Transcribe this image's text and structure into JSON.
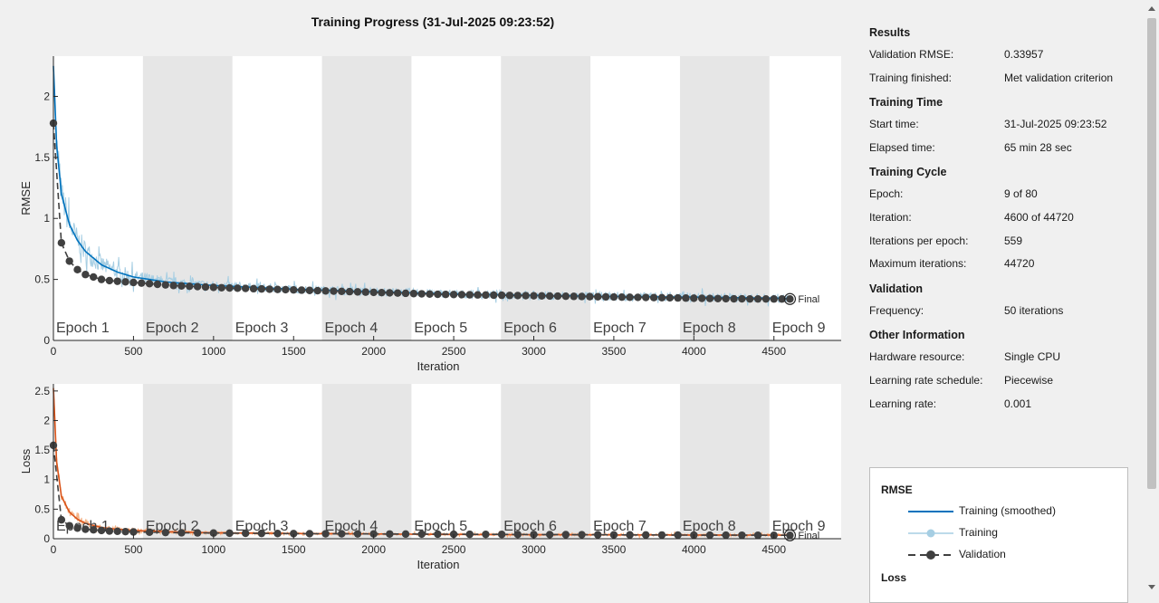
{
  "title": "Training Progress (31-Jul-2025 09:23:52)",
  "chart_data": [
    {
      "type": "line",
      "ylabel": "RMSE",
      "xlabel": "Iteration",
      "xlim": [
        0,
        4920
      ],
      "ylim": [
        0,
        2.33
      ],
      "x_ticks": [
        0,
        500,
        1000,
        1500,
        2000,
        2500,
        3000,
        3500,
        4000,
        4500
      ],
      "y_ticks": [
        0,
        0.5,
        1,
        1.5,
        2
      ],
      "y_tick_labels": [
        "0",
        "0.5",
        "1",
        "1.5",
        "2"
      ],
      "epochs": [
        "Epoch 1",
        "Epoch 2",
        "Epoch 3",
        "Epoch 4",
        "Epoch 5",
        "Epoch 6",
        "Epoch 7",
        "Epoch 8",
        "Epoch 9"
      ],
      "iterations_per_epoch": 559,
      "final_iteration": 4600,
      "final_label": "Final",
      "series": [
        {
          "name": "Training (smoothed)",
          "color": "#0072bd",
          "points": [
            [
              0,
              2.25
            ],
            [
              20,
              1.6
            ],
            [
              50,
              1.2
            ],
            [
              100,
              0.95
            ],
            [
              150,
              0.82
            ],
            [
              200,
              0.73
            ],
            [
              300,
              0.62
            ],
            [
              400,
              0.56
            ],
            [
              500,
              0.52
            ],
            [
              700,
              0.48
            ],
            [
              1000,
              0.45
            ],
            [
              1500,
              0.42
            ],
            [
              2000,
              0.4
            ],
            [
              2500,
              0.38
            ],
            [
              3000,
              0.37
            ],
            [
              3500,
              0.36
            ],
            [
              4000,
              0.355
            ],
            [
              4600,
              0.345
            ]
          ]
        },
        {
          "name": "Training",
          "color": "#a6cee3"
        },
        {
          "name": "Validation",
          "color": "#404040",
          "points": [
            [
              0,
              1.78
            ],
            [
              50,
              0.8
            ],
            [
              100,
              0.65
            ],
            [
              150,
              0.58
            ],
            [
              200,
              0.54
            ],
            [
              250,
              0.52
            ],
            [
              300,
              0.5
            ],
            [
              350,
              0.49
            ],
            [
              400,
              0.485
            ],
            [
              450,
              0.48
            ],
            [
              500,
              0.475
            ],
            [
              550,
              0.47
            ],
            [
              600,
              0.465
            ],
            [
              650,
              0.46
            ],
            [
              700,
              0.455
            ],
            [
              750,
              0.45
            ],
            [
              800,
              0.447
            ],
            [
              850,
              0.444
            ],
            [
              900,
              0.441
            ],
            [
              950,
              0.438
            ],
            [
              1000,
              0.435
            ],
            [
              1050,
              0.432
            ],
            [
              1100,
              0.43
            ],
            [
              1150,
              0.428
            ],
            [
              1200,
              0.426
            ],
            [
              1250,
              0.424
            ],
            [
              1300,
              0.422
            ],
            [
              1350,
              0.42
            ],
            [
              1400,
              0.418
            ],
            [
              1450,
              0.416
            ],
            [
              1500,
              0.414
            ],
            [
              1550,
              0.412
            ],
            [
              1600,
              0.41
            ],
            [
              1650,
              0.408
            ],
            [
              1700,
              0.406
            ],
            [
              1750,
              0.404
            ],
            [
              1800,
              0.402
            ],
            [
              1850,
              0.4
            ],
            [
              1900,
              0.398
            ],
            [
              1950,
              0.396
            ],
            [
              2000,
              0.394
            ],
            [
              2050,
              0.392
            ],
            [
              2100,
              0.39
            ],
            [
              2150,
              0.388
            ],
            [
              2200,
              0.386
            ],
            [
              2250,
              0.384
            ],
            [
              2300,
              0.382
            ],
            [
              2350,
              0.38
            ],
            [
              2400,
              0.378
            ],
            [
              2450,
              0.377
            ],
            [
              2500,
              0.376
            ],
            [
              2550,
              0.375
            ],
            [
              2600,
              0.374
            ],
            [
              2650,
              0.373
            ],
            [
              2700,
              0.372
            ],
            [
              2750,
              0.371
            ],
            [
              2800,
              0.37
            ],
            [
              2850,
              0.369
            ],
            [
              2900,
              0.368
            ],
            [
              2950,
              0.367
            ],
            [
              3000,
              0.366
            ],
            [
              3050,
              0.365
            ],
            [
              3100,
              0.364
            ],
            [
              3150,
              0.363
            ],
            [
              3200,
              0.362
            ],
            [
              3250,
              0.361
            ],
            [
              3300,
              0.36
            ],
            [
              3350,
              0.359
            ],
            [
              3400,
              0.358
            ],
            [
              3450,
              0.357
            ],
            [
              3500,
              0.356
            ],
            [
              3550,
              0.355
            ],
            [
              3600,
              0.354
            ],
            [
              3650,
              0.353
            ],
            [
              3700,
              0.352
            ],
            [
              3750,
              0.351
            ],
            [
              3800,
              0.35
            ],
            [
              3850,
              0.349
            ],
            [
              3900,
              0.348
            ],
            [
              3950,
              0.347
            ],
            [
              4000,
              0.346
            ],
            [
              4050,
              0.345
            ],
            [
              4100,
              0.344
            ],
            [
              4150,
              0.343
            ],
            [
              4200,
              0.342
            ],
            [
              4250,
              0.341
            ],
            [
              4300,
              0.341
            ],
            [
              4350,
              0.34
            ],
            [
              4400,
              0.34
            ],
            [
              4450,
              0.34
            ],
            [
              4500,
              0.3396
            ],
            [
              4550,
              0.3396
            ],
            [
              4600,
              0.33957
            ]
          ]
        }
      ]
    },
    {
      "type": "line",
      "ylabel": "Loss",
      "xlabel": "Iteration",
      "xlim": [
        0,
        4920
      ],
      "ylim": [
        0,
        2.62
      ],
      "x_ticks": [
        0,
        500,
        1000,
        1500,
        2000,
        2500,
        3000,
        3500,
        4000,
        4500
      ],
      "y_ticks": [
        0,
        0.5,
        1,
        1.5,
        2,
        2.5
      ],
      "y_tick_labels": [
        "0",
        "0.5",
        "1",
        "1.5",
        "2",
        "2.5"
      ],
      "epochs": [
        "Epoch 1",
        "Epoch 2",
        "Epoch 3",
        "Epoch 4",
        "Epoch 5",
        "Epoch 6",
        "Epoch 7",
        "Epoch 8",
        "Epoch 9"
      ],
      "iterations_per_epoch": 559,
      "final_iteration": 4600,
      "final_label": "Final",
      "series": [
        {
          "name": "Training (smoothed)",
          "color": "#d95319",
          "points": [
            [
              0,
              2.55
            ],
            [
              20,
              1.3
            ],
            [
              50,
              0.72
            ],
            [
              100,
              0.45
            ],
            [
              150,
              0.33
            ],
            [
              200,
              0.26
            ],
            [
              300,
              0.19
            ],
            [
              400,
              0.16
            ],
            [
              500,
              0.14
            ],
            [
              700,
              0.12
            ],
            [
              1000,
              0.1
            ],
            [
              1500,
              0.088
            ],
            [
              2000,
              0.08
            ],
            [
              2500,
              0.072
            ],
            [
              3000,
              0.068
            ],
            [
              3500,
              0.065
            ],
            [
              4000,
              0.063
            ],
            [
              4600,
              0.06
            ]
          ]
        },
        {
          "name": "Training",
          "color": "#f4b183"
        },
        {
          "name": "Validation",
          "color": "#404040",
          "points": [
            [
              0,
              1.58
            ],
            [
              50,
              0.32
            ],
            [
              100,
              0.22
            ],
            [
              150,
              0.18
            ],
            [
              200,
              0.16
            ],
            [
              250,
              0.15
            ],
            [
              300,
              0.14
            ],
            [
              350,
              0.13
            ],
            [
              400,
              0.125
            ],
            [
              450,
              0.12
            ],
            [
              500,
              0.115
            ],
            [
              600,
              0.11
            ],
            [
              700,
              0.105
            ],
            [
              800,
              0.1
            ],
            [
              900,
              0.098
            ],
            [
              1000,
              0.096
            ],
            [
              1100,
              0.094
            ],
            [
              1200,
              0.092
            ],
            [
              1300,
              0.09
            ],
            [
              1400,
              0.088
            ],
            [
              1500,
              0.086
            ],
            [
              1600,
              0.085
            ],
            [
              1700,
              0.084
            ],
            [
              1800,
              0.083
            ],
            [
              1900,
              0.082
            ],
            [
              2000,
              0.081
            ],
            [
              2100,
              0.08
            ],
            [
              2200,
              0.079
            ],
            [
              2300,
              0.078
            ],
            [
              2400,
              0.077
            ],
            [
              2500,
              0.076
            ],
            [
              2600,
              0.075
            ],
            [
              2700,
              0.074
            ],
            [
              2800,
              0.073
            ],
            [
              2900,
              0.072
            ],
            [
              3000,
              0.071
            ],
            [
              3100,
              0.07
            ],
            [
              3200,
              0.069
            ],
            [
              3300,
              0.068
            ],
            [
              3400,
              0.067
            ],
            [
              3500,
              0.066
            ],
            [
              3600,
              0.065
            ],
            [
              3700,
              0.064
            ],
            [
              3800,
              0.063
            ],
            [
              3900,
              0.062
            ],
            [
              4000,
              0.061
            ],
            [
              4100,
              0.06
            ],
            [
              4200,
              0.06
            ],
            [
              4300,
              0.059
            ],
            [
              4400,
              0.059
            ],
            [
              4500,
              0.058
            ],
            [
              4600,
              0.058
            ]
          ]
        }
      ]
    }
  ],
  "info": {
    "sections": [
      {
        "title": "Results",
        "rows": [
          {
            "label": "Validation RMSE:",
            "value": "0.33957"
          },
          {
            "label": "Training finished:",
            "value": "Met validation criterion"
          }
        ]
      },
      {
        "title": "Training Time",
        "rows": [
          {
            "label": "Start time:",
            "value": "31-Jul-2025 09:23:52"
          },
          {
            "label": "Elapsed time:",
            "value": "65 min 28 sec"
          }
        ]
      },
      {
        "title": "Training Cycle",
        "rows": [
          {
            "label": "Epoch:",
            "value": "9 of 80"
          },
          {
            "label": "Iteration:",
            "value": "4600 of 44720"
          },
          {
            "label": "Iterations per epoch:",
            "value": "559"
          },
          {
            "label": "Maximum iterations:",
            "value": "44720"
          }
        ]
      },
      {
        "title": "Validation",
        "rows": [
          {
            "label": "Frequency:",
            "value": "50 iterations"
          }
        ]
      },
      {
        "title": "Other Information",
        "rows": [
          {
            "label": "Hardware resource:",
            "value": "Single CPU"
          },
          {
            "label": "Learning rate schedule:",
            "value": "Piecewise"
          },
          {
            "label": "Learning rate:",
            "value": "0.001"
          }
        ]
      }
    ]
  },
  "legend": {
    "rmse_title": "RMSE",
    "loss_title": "Loss",
    "items": [
      {
        "label": "Training (smoothed)",
        "color": "#0072bd",
        "style": "solid"
      },
      {
        "label": "Training",
        "color": "#a6cee3",
        "style": "marker"
      },
      {
        "label": "Validation",
        "color": "#404040",
        "style": "dashed-marker"
      }
    ]
  },
  "colors": {
    "epoch_shade": "#e6e6e6",
    "plot_bg": "#ffffff",
    "page_bg": "#f0f0f0"
  }
}
